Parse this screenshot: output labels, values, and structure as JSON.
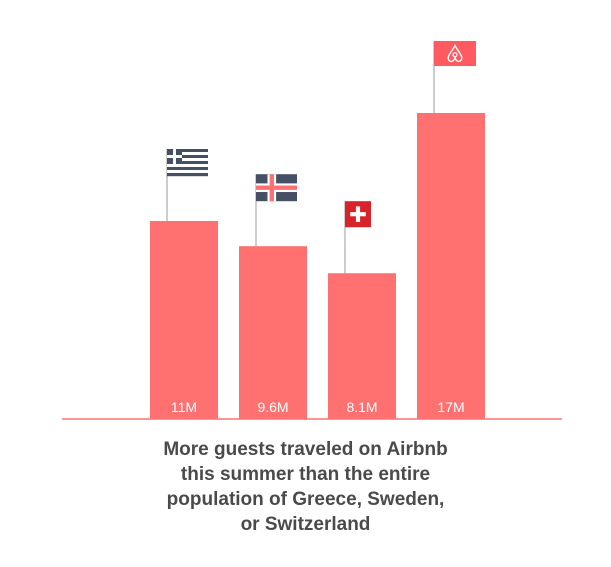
{
  "chart_data": {
    "type": "bar",
    "categories": [
      "Greece",
      "Sweden",
      "Switzerland",
      "Airbnb"
    ],
    "values": [
      11,
      9.6,
      8.1,
      17
    ],
    "value_labels": [
      "11M",
      "9.6M",
      "8.1M",
      "17M"
    ],
    "ylim": [
      0,
      20
    ],
    "grid": false,
    "legend": "none"
  },
  "caption_lines": [
    "More guests traveled on Airbnb",
    "this summer than the entire",
    "population of Greece, Sweden,",
    "or Switzerland"
  ],
  "colors": {
    "bar": "#ff7170",
    "baseline": "#ff7170",
    "pole": "#9b9b9b",
    "caption": "#4a4a4a",
    "greece_stripe": "#465065",
    "sweden_base": "#465065",
    "sweden_cross": "#ff7170",
    "swiss_red": "#d9222a",
    "airbnb_flag": "#ff5a5f"
  },
  "flags": [
    "greece-flag-icon",
    "sweden-flag-icon",
    "switzerland-flag-icon",
    "airbnb-flag-icon"
  ]
}
